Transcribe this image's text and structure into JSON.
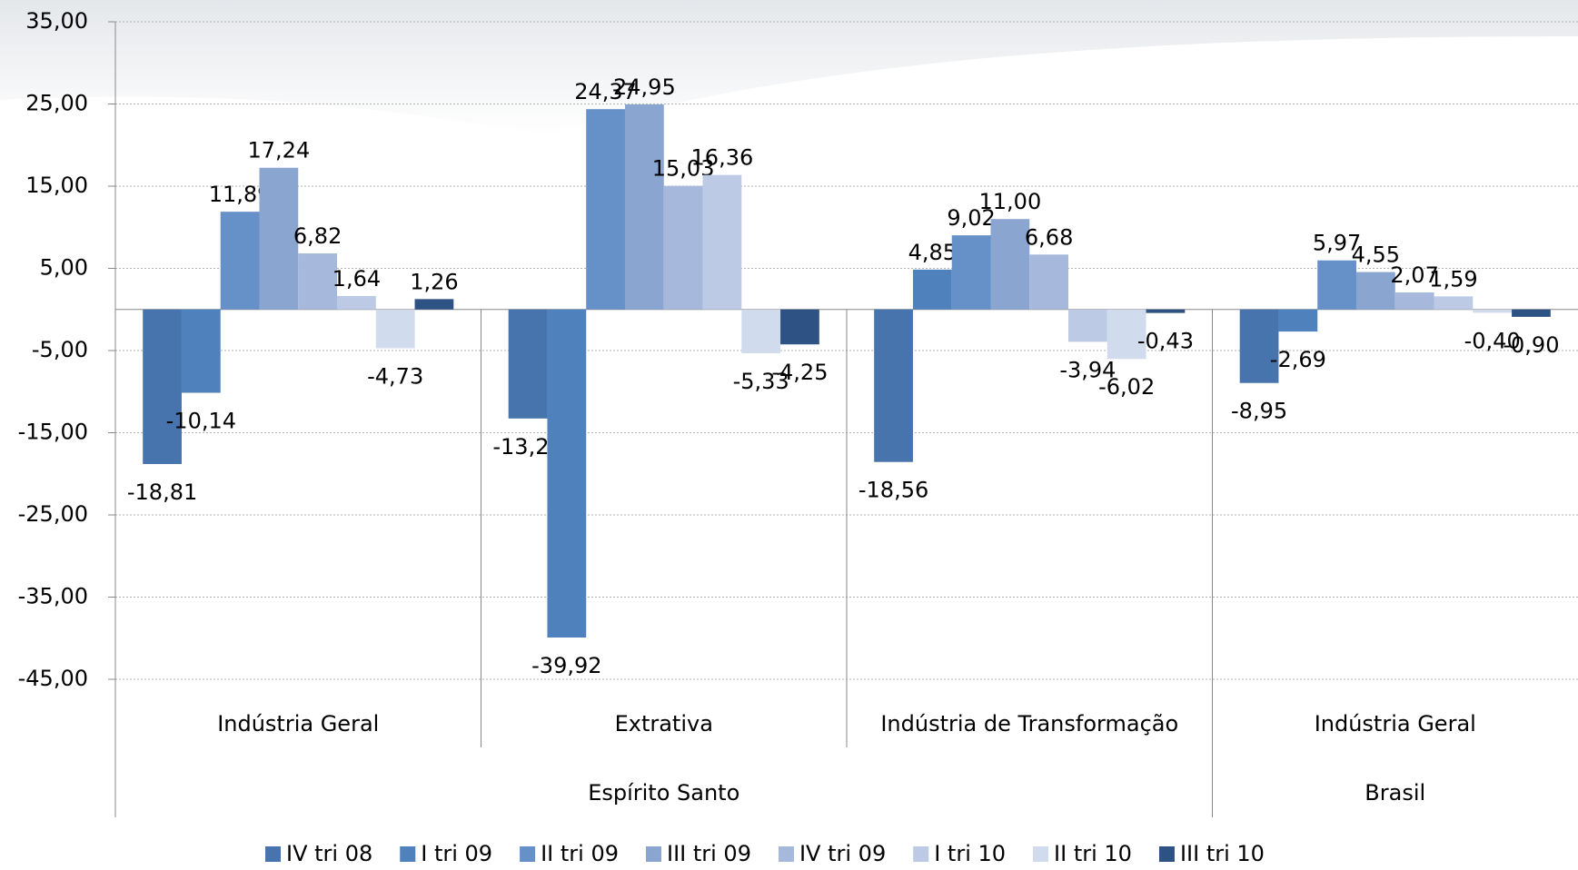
{
  "chart_data": {
    "type": "bar",
    "categories": [
      "Indústria Geral",
      "Extrativa",
      "Indústria de Transformação",
      "Indústria Geral"
    ],
    "groups": [
      {
        "name": "Espírito Santo",
        "size": 3
      },
      {
        "name": "Brasil",
        "size": 1
      }
    ],
    "ylim": [
      -45,
      35
    ],
    "yticks": [
      {
        "value": 35,
        "label": "35,00"
      },
      {
        "value": 25,
        "label": "25,00"
      },
      {
        "value": 15,
        "label": "15,00"
      },
      {
        "value": 5,
        "label": "5,00"
      },
      {
        "value": -5,
        "label": "-5,00"
      },
      {
        "value": -15,
        "label": "-15,00"
      },
      {
        "value": -25,
        "label": "-25,00"
      },
      {
        "value": -35,
        "label": "-35,00"
      },
      {
        "value": -45,
        "label": "-45,00"
      }
    ],
    "grid": true,
    "legend": "bottom",
    "series": [
      {
        "name": "IV tri 08",
        "color": "#4874ad",
        "values": [
          -18.81,
          -13.27,
          -18.56,
          -8.95
        ],
        "value_labels": [
          "-18,81",
          "-13,27",
          "-18,56",
          "-8,95"
        ]
      },
      {
        "name": "I tri 09",
        "color": "#4f81bd",
        "values": [
          -10.14,
          -39.92,
          4.85,
          -2.69
        ],
        "value_labels": [
          "-10,14",
          "-39,92",
          "4,85",
          "-2,69"
        ]
      },
      {
        "name": "II tri 09",
        "color": "#6690c8",
        "values": [
          11.89,
          24.37,
          9.02,
          5.97
        ],
        "value_labels": [
          "11,89",
          "24,37",
          "9,02",
          "5,97"
        ]
      },
      {
        "name": "III tri 09",
        "color": "#8ba5d1",
        "values": [
          17.24,
          24.95,
          11.0,
          4.55
        ],
        "value_labels": [
          "17,24",
          "24,95",
          "11,00",
          "4,55"
        ]
      },
      {
        "name": "IV tri 09",
        "color": "#a6b9dc",
        "values": [
          6.82,
          15.03,
          6.68,
          2.07
        ],
        "value_labels": [
          "6,82",
          "15,03",
          "6,68",
          "2,07"
        ]
      },
      {
        "name": "I tri 10",
        "color": "#bccae5",
        "values": [
          1.64,
          16.36,
          -3.94,
          1.59
        ],
        "value_labels": [
          "1,64",
          "16,36",
          "-3,94",
          "1,59"
        ]
      },
      {
        "name": "II tri 10",
        "color": "#d1dbee",
        "values": [
          -4.73,
          -5.33,
          -6.02,
          -0.4
        ],
        "value_labels": [
          "-4,73",
          "-5,33",
          "-6,02",
          "-0,40"
        ]
      },
      {
        "name": "III tri 10",
        "color": "#2f5284",
        "values": [
          1.26,
          -4.25,
          -0.43,
          -0.9
        ],
        "value_labels": [
          "1,26",
          "-4,25",
          "-0,43",
          "-0,90"
        ]
      }
    ]
  }
}
